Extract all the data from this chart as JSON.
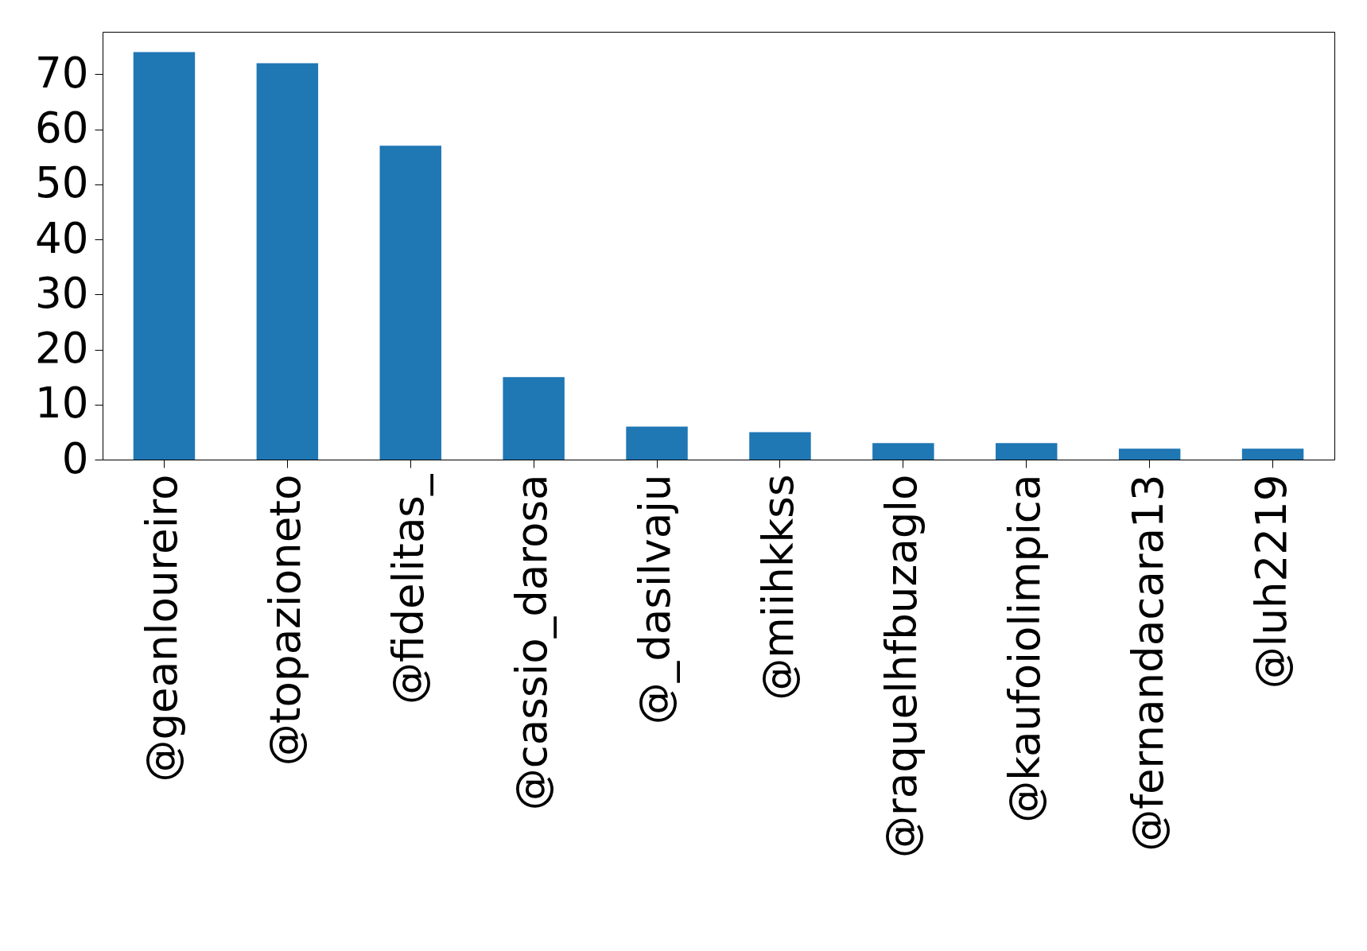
{
  "chart_data": {
    "type": "bar",
    "categories": [
      "@geanloureiro",
      "@topazioneto",
      "@fidelitas_",
      "@cassio_darosa",
      "@_dasilvaju",
      "@miihkkss",
      "@raquelhfbuzaglo",
      "@kaufoiolimpica",
      "@fernandacara13",
      "@luh2219"
    ],
    "values": [
      74,
      72,
      57,
      15,
      6,
      5,
      3,
      3,
      2,
      2
    ],
    "color": "#1f77b4",
    "ylim": [
      0,
      77.7
    ],
    "yticks": [
      0,
      10,
      20,
      30,
      40,
      50,
      60,
      70
    ]
  }
}
